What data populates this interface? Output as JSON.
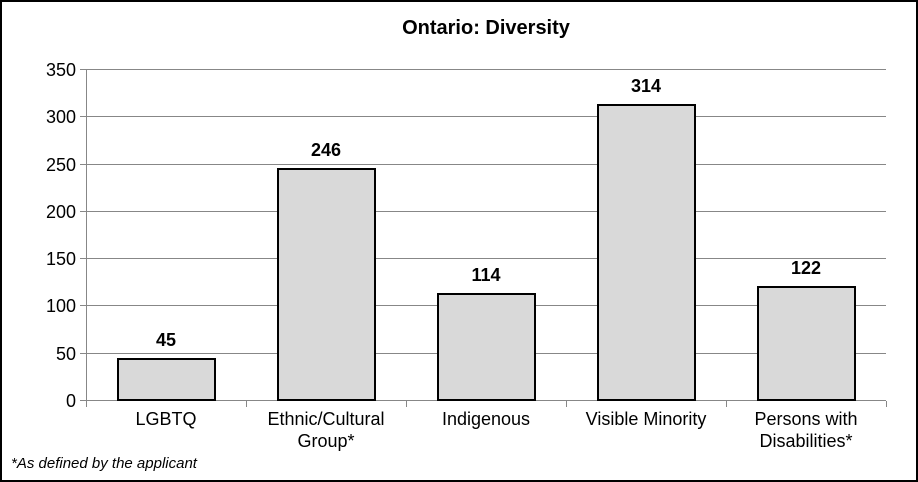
{
  "chart_data": {
    "type": "bar",
    "title": "Ontario: Diversity",
    "categories": [
      "LGBTQ",
      "Ethnic/Cultural\nGroup*",
      "Indigenous",
      "Visible Minority",
      "Persons with\nDisabilities*"
    ],
    "values": [
      45,
      246,
      114,
      314,
      122
    ],
    "xlabel": "",
    "ylabel": "",
    "ylim": [
      0,
      350
    ],
    "ytick_step": 50,
    "grid": "horizontal",
    "legend": "none",
    "footnote": "*As defined by the applicant",
    "colors": {
      "bar_fill": "#d9d9d9",
      "bar_border": "#000000",
      "gridline": "#878787",
      "text": "#000000",
      "background": "#ffffff"
    }
  }
}
